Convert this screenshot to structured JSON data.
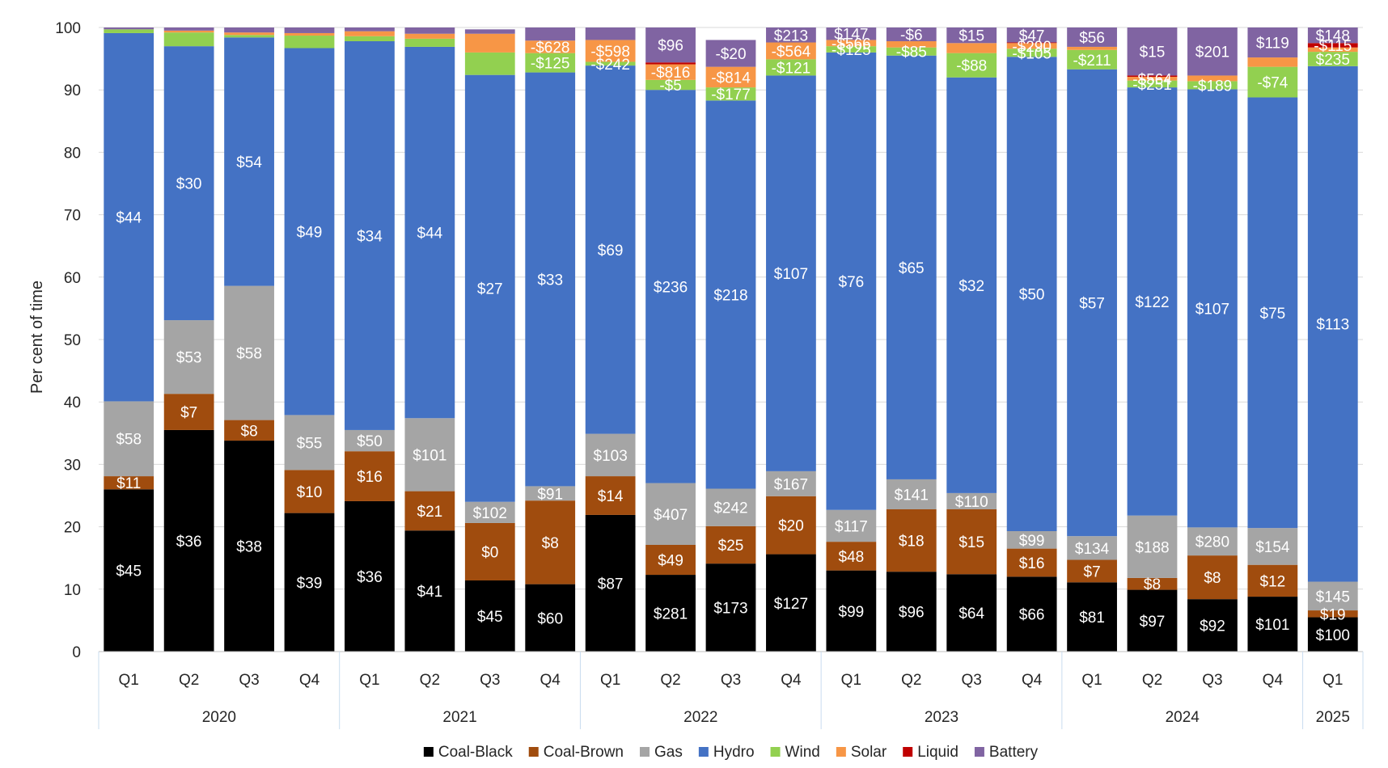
{
  "chart_data": {
    "type": "bar",
    "stacked": true,
    "normalized_percent": true,
    "ylabel": "Per cent of time",
    "ylim": [
      0,
      100
    ],
    "yticks": [
      0,
      10,
      20,
      30,
      40,
      50,
      60,
      70,
      80,
      90,
      100
    ],
    "categories": [
      "Q1",
      "Q2",
      "Q3",
      "Q4",
      "Q1",
      "Q2",
      "Q3",
      "Q4",
      "Q1",
      "Q2",
      "Q3",
      "Q4",
      "Q1",
      "Q2",
      "Q3",
      "Q4",
      "Q1",
      "Q2",
      "Q3",
      "Q4",
      "Q1"
    ],
    "groups": [
      {
        "label": "2020",
        "count": 4
      },
      {
        "label": "2021",
        "count": 4
      },
      {
        "label": "2022",
        "count": 4
      },
      {
        "label": "2023",
        "count": 4
      },
      {
        "label": "2024",
        "count": 4
      },
      {
        "label": "2025",
        "count": 1
      }
    ],
    "legend_position": "bottom",
    "series": [
      {
        "name": "Coal-Black",
        "color": "#000000",
        "text_color": "#ffffff",
        "values": [
          26.0,
          35.5,
          33.8,
          22.2,
          24.1,
          19.4,
          11.4,
          10.8,
          21.9,
          12.3,
          14.1,
          15.6,
          13.0,
          12.8,
          12.4,
          12.0,
          11.1,
          9.9,
          8.4,
          8.8,
          5.5
        ],
        "labels": [
          "$45",
          "$36",
          "$38",
          "$39",
          "$36",
          "$41",
          "$45",
          "$60",
          "$87",
          "$281",
          "$173",
          "$127",
          "$99",
          "$96",
          "$64",
          "$66",
          "$81",
          "$97",
          "$92",
          "$101",
          "$100"
        ]
      },
      {
        "name": "Coal-Brown",
        "color": "#a04c0e",
        "text_color": "#ffffff",
        "values": [
          2.1,
          5.8,
          3.3,
          6.9,
          8.0,
          6.3,
          9.2,
          13.4,
          6.2,
          4.8,
          6.0,
          9.3,
          4.6,
          10.0,
          10.4,
          4.5,
          3.6,
          1.9,
          7.0,
          5.1,
          1.1
        ],
        "labels": [
          "$11",
          "$7",
          "$8",
          "$10",
          "$16",
          "$21",
          "$0",
          "$8",
          "$14",
          "$49",
          "$25",
          "$20",
          "$48",
          "$18",
          "$15",
          "$16",
          "$7",
          "$8",
          "$8",
          "$12",
          "$19"
        ]
      },
      {
        "name": "Gas",
        "color": "#a5a5a5",
        "text_color": "#ffffff",
        "values": [
          12.0,
          11.8,
          21.5,
          8.8,
          3.4,
          11.7,
          3.4,
          2.3,
          6.8,
          9.9,
          6.0,
          4.0,
          5.1,
          4.8,
          2.6,
          2.8,
          3.8,
          10.0,
          4.5,
          5.9,
          4.6
        ],
        "labels": [
          "$58",
          "$53",
          "$58",
          "$55",
          "$50",
          "$101",
          "$102",
          "$91",
          "$103",
          "$407",
          "$242",
          "$167",
          "$117",
          "$141",
          "$110",
          "$99",
          "$134",
          "$188",
          "$280",
          "$154",
          "$145"
        ]
      },
      {
        "name": "Hydro",
        "color": "#4472c4",
        "text_color": "#ffffff",
        "values": [
          59.0,
          43.9,
          39.8,
          58.8,
          62.3,
          59.5,
          68.4,
          66.3,
          59.0,
          63.0,
          62.2,
          63.4,
          73.3,
          67.9,
          66.6,
          76.0,
          74.8,
          68.6,
          70.2,
          69.0,
          82.6
        ],
        "labels": [
          "$44",
          "$30",
          "$54",
          "$49",
          "$34",
          "$44",
          "$27",
          "$33",
          "$69",
          "$236",
          "$218",
          "$107",
          "$76",
          "$65",
          "$32",
          "$50",
          "$57",
          "$122",
          "$107",
          "$75",
          "$113"
        ]
      },
      {
        "name": "Wind",
        "color": "#92d050",
        "text_color": "#ffffff",
        "values": [
          0.6,
          2.2,
          0.4,
          2.0,
          0.8,
          1.3,
          3.6,
          3.1,
          0.6,
          1.6,
          2.1,
          2.6,
          1.0,
          1.3,
          3.9,
          1.3,
          3.1,
          1.1,
          1.3,
          4.9,
          2.3
        ],
        "labels": [
          "",
          "",
          "",
          "",
          "",
          "",
          "",
          "-$125",
          "-$242",
          "-$5",
          "-$177",
          "-$121",
          "-$125",
          "-$85",
          "-$88",
          "-$105",
          "-$211",
          "-$251",
          "-$189",
          "-$74",
          "$235"
        ]
      },
      {
        "name": "Solar",
        "color": "#f79646",
        "text_color": "#ffffff",
        "values": [
          0.0,
          0.3,
          0.4,
          0.4,
          0.8,
          0.8,
          3.0,
          2.0,
          3.5,
          2.5,
          3.3,
          2.7,
          1.0,
          1.0,
          1.6,
          0.9,
          0.5,
          0.6,
          0.9,
          1.5,
          0.7
        ],
        "labels": [
          "",
          "",
          "",
          "",
          "",
          "",
          "",
          "-$628",
          "-$598",
          "-$816",
          "-$814",
          "-$564",
          "-$566",
          "",
          "",
          "-$290",
          "",
          "-$564",
          "",
          "",
          ""
        ]
      },
      {
        "name": "Liquid",
        "color": "#c00000",
        "text_color": "#ffffff",
        "values": [
          0.0,
          0.0,
          0.0,
          0.0,
          0.0,
          0.0,
          0.0,
          0.0,
          0.0,
          0.3,
          0.0,
          0.0,
          0.0,
          0.0,
          0.0,
          0.1,
          0.0,
          0.2,
          0.0,
          0.0,
          0.7
        ],
        "labels": [
          "",
          "",
          "",
          "",
          "",
          "",
          "",
          "",
          "",
          "",
          "",
          "",
          "",
          "",
          "",
          "",
          "",
          "",
          "",
          "",
          "-$115"
        ]
      },
      {
        "name": "Battery",
        "color": "#8064a2",
        "text_color": "#ffffff",
        "values": [
          0.3,
          0.5,
          0.8,
          0.9,
          0.6,
          1.0,
          0.7,
          2.1,
          2.0,
          5.6,
          4.3,
          2.4,
          2.0,
          2.2,
          2.5,
          2.4,
          3.1,
          7.7,
          7.7,
          4.8,
          2.5
        ],
        "labels": [
          "",
          "",
          "",
          "",
          "",
          "",
          "",
          "",
          "",
          "$96",
          "-$20",
          "$213",
          "$147",
          "-$6",
          "$15",
          "$47",
          "$56",
          "$15",
          "$201",
          "$119",
          "$148"
        ]
      }
    ]
  }
}
